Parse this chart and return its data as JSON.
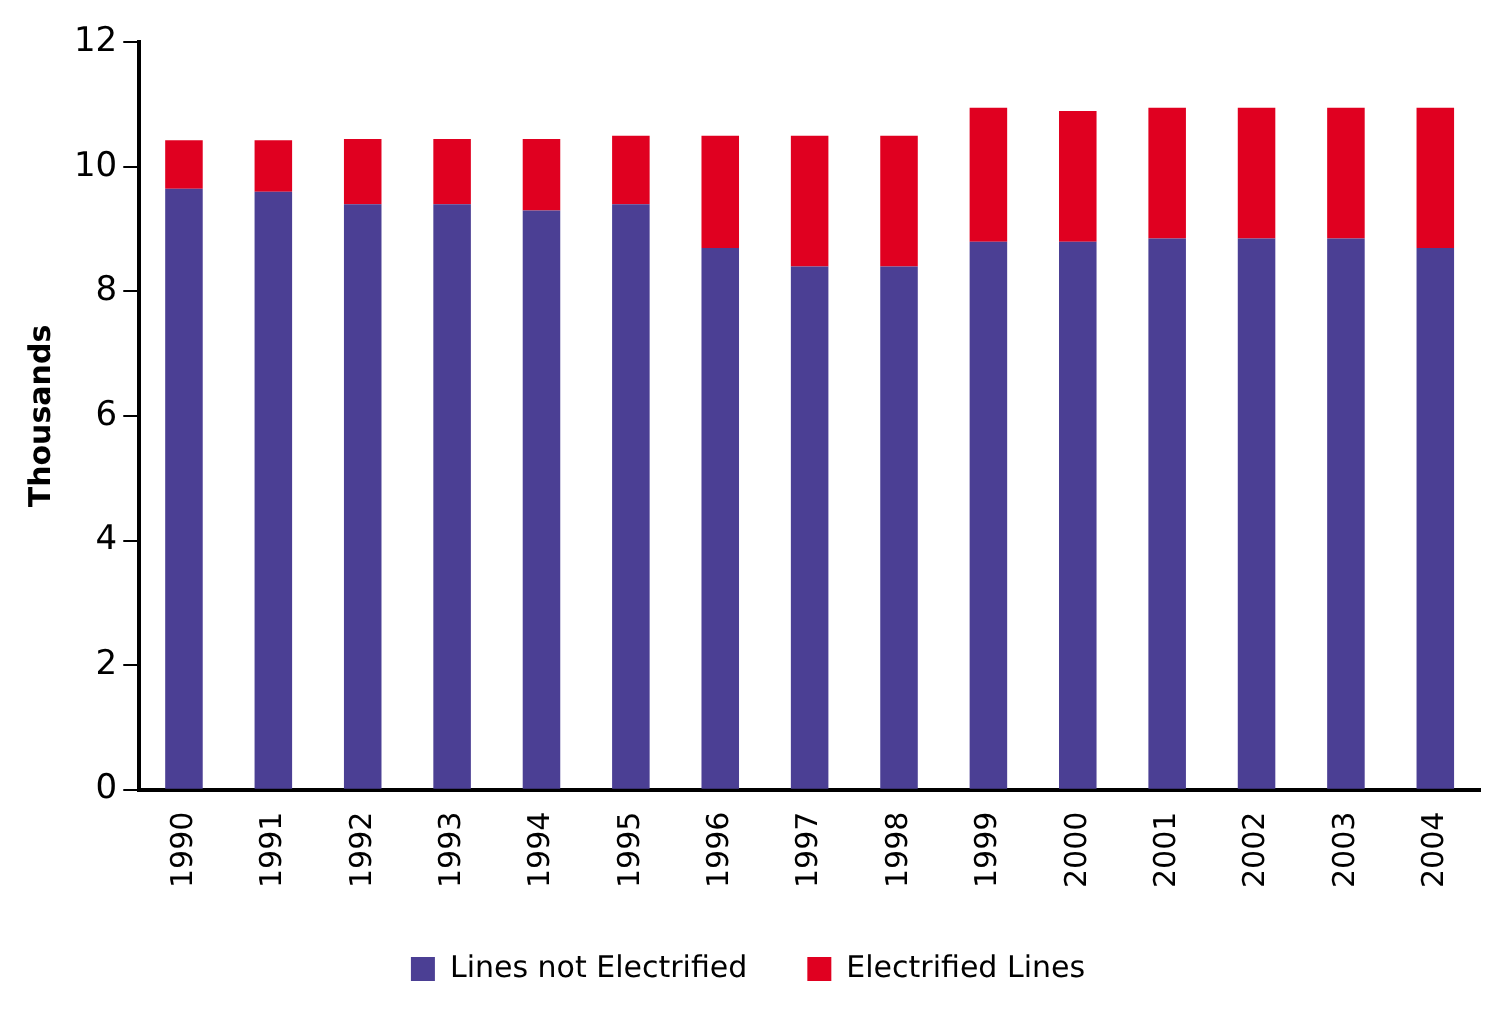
{
  "chart_data": {
    "type": "bar",
    "stacked": true,
    "ylabel": "Thousands",
    "categories": [
      "1990",
      "1991",
      "1992",
      "1993",
      "1994",
      "1995",
      "1996",
      "1997",
      "1998",
      "1999",
      "2000",
      "2001",
      "2002",
      "2003",
      "2004"
    ],
    "series": [
      {
        "name": "Lines not Electrified",
        "color": "#4b3f94",
        "values": [
          9.65,
          9.6,
          9.4,
          9.4,
          9.3,
          9.4,
          8.7,
          8.4,
          8.4,
          8.8,
          8.8,
          8.85,
          8.85,
          8.85,
          8.7
        ]
      },
      {
        "name": "Electrified Lines",
        "color": "#e00020",
        "values": [
          0.78,
          0.83,
          1.05,
          1.05,
          1.15,
          1.1,
          1.8,
          2.1,
          2.1,
          2.15,
          2.1,
          2.1,
          2.1,
          2.1,
          2.25
        ]
      }
    ],
    "ylim": [
      0,
      12
    ],
    "yticks": [
      0,
      2,
      4,
      6,
      8,
      10,
      12
    ],
    "grid": false,
    "legend": "bottom"
  }
}
